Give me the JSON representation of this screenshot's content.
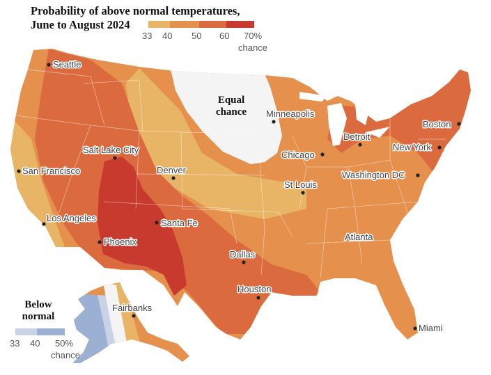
{
  "legend": {
    "title_line1": "Probability of above normal temperatures,",
    "title_line2": "June to August 2024",
    "ticks": [
      "33",
      "40",
      "50",
      "60",
      "70%"
    ],
    "unit": "chance",
    "colors": [
      "#e8b566",
      "#e5904d",
      "#dc6a3f",
      "#c83a2e"
    ]
  },
  "below_legend": {
    "title_line1": "Below",
    "title_line2": "normal",
    "ticks": [
      "33",
      "40",
      "50%"
    ],
    "unit": "chance",
    "colors": [
      "#c9d3e6",
      "#9cb0d3"
    ]
  },
  "equal_chance": {
    "line1": "Equal",
    "line2": "chance"
  },
  "cities": [
    "Seattle",
    "San Francisco",
    "Los Angeles",
    "Salt Lake City",
    "Denver",
    "Phoenix",
    "Santa Fe",
    "Minneapolis",
    "Chicago",
    "St Louis",
    "Detroit",
    "Washington DC",
    "New York",
    "Boston",
    "Atlanta",
    "Dallas",
    "Houston",
    "Miami",
    "Fairbanks"
  ]
}
